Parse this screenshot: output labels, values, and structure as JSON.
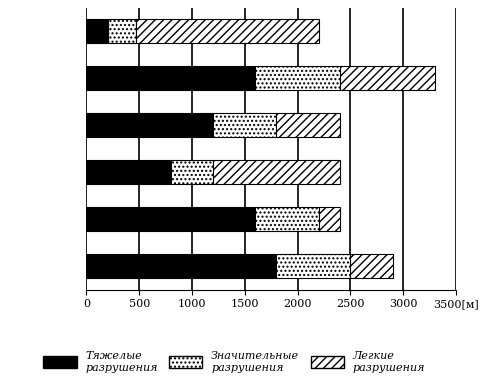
{
  "chart_data": {
    "type": "bar",
    "orientation": "horizontal",
    "stacked": true,
    "categories": [
      null,
      null,
      null,
      null,
      null,
      null
    ],
    "series": [
      {
        "name": "Тяжелые\nразрушения",
        "color": "#000000",
        "values": [
          200,
          1600,
          1200,
          800,
          1600,
          1800
        ]
      },
      {
        "name": "Значительные\nразрушения",
        "color": "#ffffff",
        "values": [
          270,
          800,
          600,
          400,
          600,
          700
        ]
      },
      {
        "name": "Легкие\nразрушения",
        "color": "#ffffff",
        "values": [
          1730,
          900,
          600,
          1200,
          200,
          400
        ]
      }
    ],
    "xlim": [
      0,
      3500
    ],
    "xticks": [
      0,
      500,
      1000,
      1500,
      2000,
      2500,
      3000,
      {
        "value": 3500,
        "label": "3500[м]"
      }
    ],
    "grid": true,
    "legend": "lower center",
    "tick_labels": "x"
  }
}
